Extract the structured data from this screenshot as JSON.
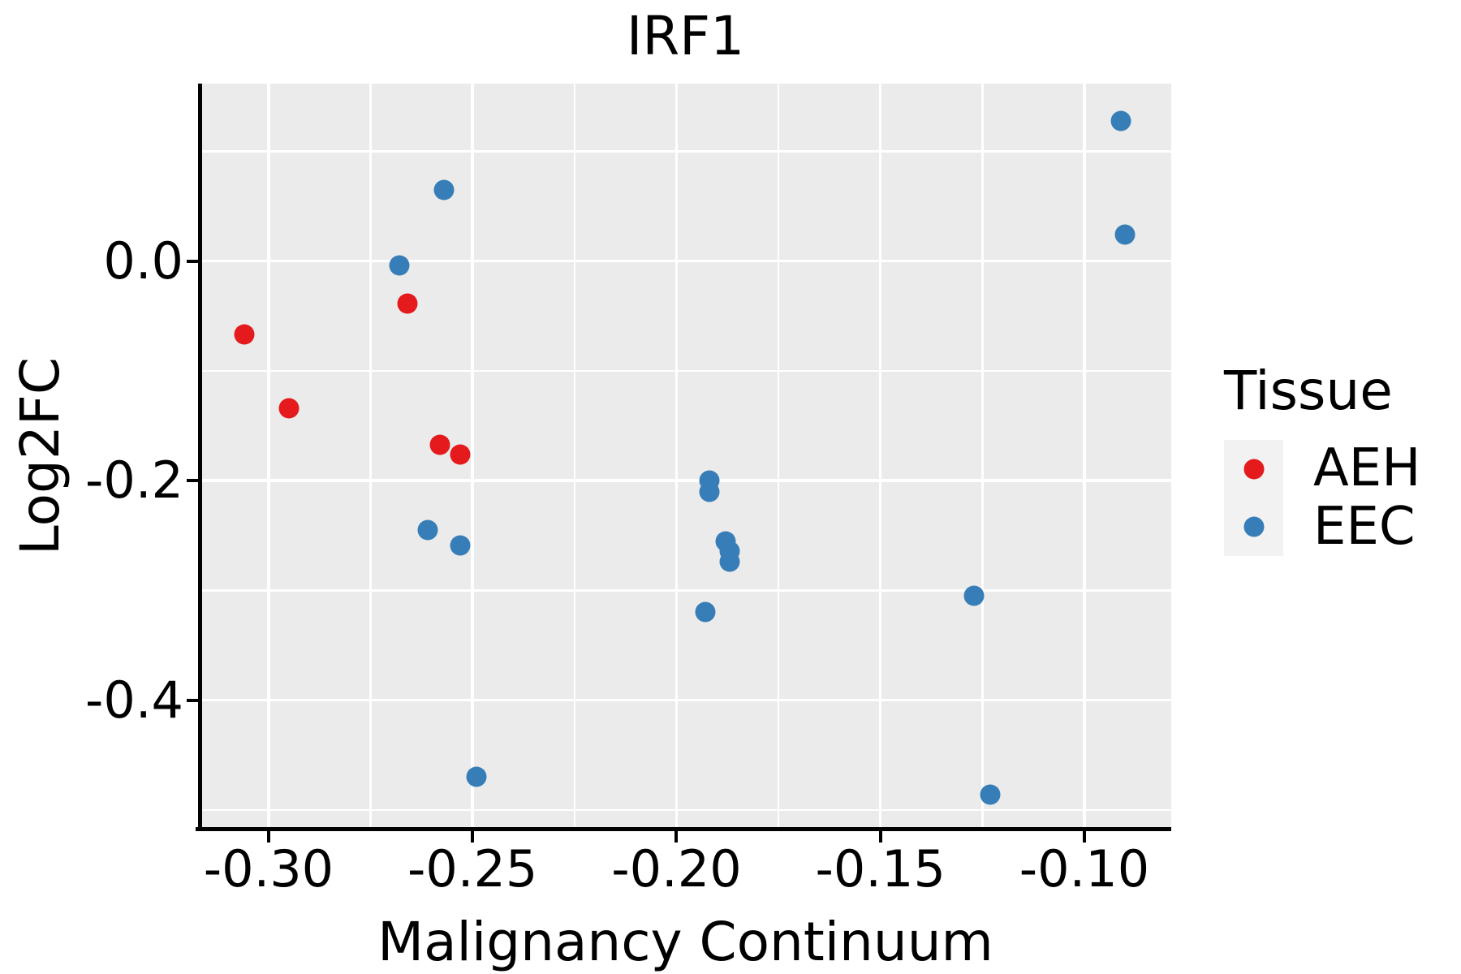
{
  "title": "IRF1",
  "axes": {
    "x": {
      "label": "Malignancy Continuum"
    },
    "y": {
      "label": "Log2FC"
    }
  },
  "legend": {
    "title": "Tissue",
    "entries": [
      {
        "label": "AEH",
        "color": "#e41a1c"
      },
      {
        "label": "EEC",
        "color": "#377eb8"
      }
    ]
  },
  "style": {
    "panel_bg": "#ebebeb",
    "grid_color": "#ffffff",
    "legend_key_bg": "#f2f2f2",
    "axis_text_color": "#000000",
    "point_diameter": 25
  },
  "chart_data": {
    "type": "scatter",
    "title": "IRF1",
    "xlabel": "Malignancy Continuum",
    "ylabel": "Log2FC",
    "xlim": [
      -0.3169,
      -0.0787
    ],
    "ylim": [
      -0.5171,
      0.1617
    ],
    "grid": true,
    "legend_position": "right",
    "x_major_ticks": [
      -0.3,
      -0.25,
      -0.2,
      -0.15,
      -0.1
    ],
    "x_tick_labels": [
      "-0.30",
      "-0.25",
      "-0.20",
      "-0.15",
      "-0.10"
    ],
    "x_minor_ticks": [
      -0.275,
      -0.225,
      -0.175,
      -0.125
    ],
    "y_major_ticks": [
      0.0,
      -0.2,
      -0.4
    ],
    "y_tick_labels": [
      "0.0",
      "-0.2",
      "-0.4"
    ],
    "y_minor_ticks": [
      0.1,
      -0.1,
      -0.3,
      -0.5
    ],
    "series": [
      {
        "name": "AEH",
        "color": "#e41a1c",
        "points": [
          [
            -0.306,
            -0.067
          ],
          [
            -0.295,
            -0.134
          ],
          [
            -0.266,
            -0.039
          ],
          [
            -0.258,
            -0.167
          ],
          [
            -0.253,
            -0.176
          ]
        ]
      },
      {
        "name": "EEC",
        "color": "#377eb8",
        "points": [
          [
            -0.268,
            -0.004
          ],
          [
            -0.257,
            0.065
          ],
          [
            -0.261,
            -0.245
          ],
          [
            -0.253,
            -0.259
          ],
          [
            -0.249,
            -0.47
          ],
          [
            -0.192,
            -0.2
          ],
          [
            -0.192,
            -0.21
          ],
          [
            -0.188,
            -0.255
          ],
          [
            -0.187,
            -0.264
          ],
          [
            -0.187,
            -0.274
          ],
          [
            -0.193,
            -0.32
          ],
          [
            -0.127,
            -0.305
          ],
          [
            -0.123,
            -0.486
          ],
          [
            -0.091,
            0.128
          ],
          [
            -0.09,
            0.024
          ]
        ]
      }
    ]
  }
}
